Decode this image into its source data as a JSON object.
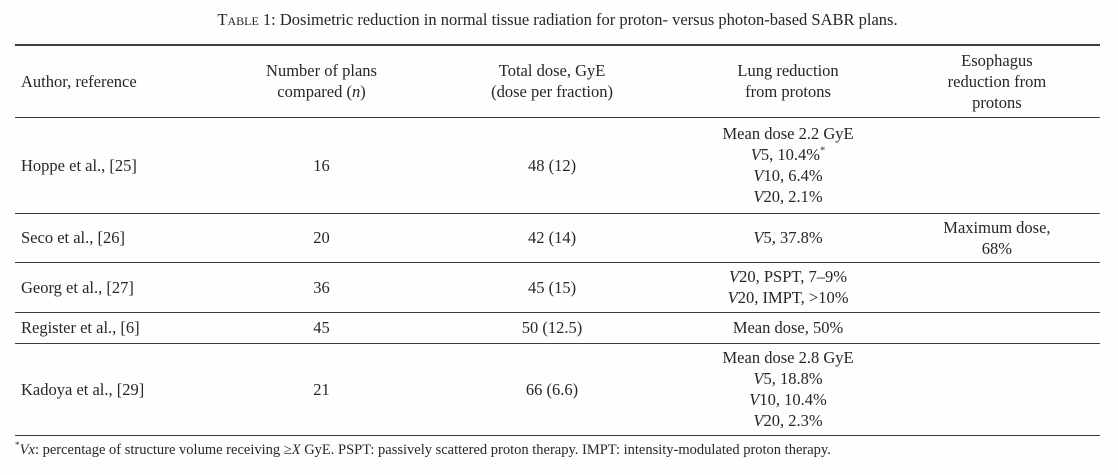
{
  "caption": {
    "label": "Table 1:",
    "text": " Dosimetric reduction in normal tissue radiation for proton- versus photon-based SABR plans."
  },
  "columns": [
    {
      "id": "author",
      "lines": [
        [
          {
            "t": "Author, reference"
          }
        ]
      ]
    },
    {
      "id": "plans",
      "lines": [
        [
          {
            "t": "Number of plans"
          }
        ],
        [
          {
            "t": "compared ("
          },
          {
            "t": "n",
            "i": true
          },
          {
            "t": ")"
          }
        ]
      ]
    },
    {
      "id": "dose",
      "lines": [
        [
          {
            "t": "Total dose, GyE"
          }
        ],
        [
          {
            "t": "(dose per fraction)"
          }
        ]
      ]
    },
    {
      "id": "lung",
      "lines": [
        [
          {
            "t": "Lung reduction"
          }
        ],
        [
          {
            "t": "from protons"
          }
        ]
      ]
    },
    {
      "id": "esophagus",
      "lines": [
        [
          {
            "t": "Esophagus"
          }
        ],
        [
          {
            "t": "reduction from"
          }
        ],
        [
          {
            "t": "protons"
          }
        ]
      ]
    }
  ],
  "rows": [
    {
      "author": [
        [
          {
            "t": "Hoppe et al., [25]"
          }
        ]
      ],
      "plans": [
        [
          {
            "t": "16"
          }
        ]
      ],
      "dose": [
        [
          {
            "t": "48 (12)"
          }
        ]
      ],
      "lung": [
        [
          {
            "t": "Mean dose 2.2 GyE"
          }
        ],
        [
          {
            "t": "V",
            "i": true
          },
          {
            "t": "5, 10.4%"
          },
          {
            "t": "*",
            "sup": true
          }
        ],
        [
          {
            "t": "V",
            "i": true
          },
          {
            "t": "10, 6.4%"
          }
        ],
        [
          {
            "t": "V",
            "i": true
          },
          {
            "t": "20, 2.1%"
          }
        ]
      ],
      "esophagus": []
    },
    {
      "author": [
        [
          {
            "t": "Seco et al., [26]"
          }
        ]
      ],
      "plans": [
        [
          {
            "t": "20"
          }
        ]
      ],
      "dose": [
        [
          {
            "t": "42 (14)"
          }
        ]
      ],
      "lung": [
        [
          {
            "t": "V",
            "i": true
          },
          {
            "t": "5, 37.8%"
          }
        ]
      ],
      "esophagus": [
        [
          {
            "t": "Maximum dose,"
          }
        ],
        [
          {
            "t": "68%"
          }
        ]
      ]
    },
    {
      "author": [
        [
          {
            "t": "Georg et al., [27]"
          }
        ]
      ],
      "plans": [
        [
          {
            "t": "36"
          }
        ]
      ],
      "dose": [
        [
          {
            "t": "45 (15)"
          }
        ]
      ],
      "lung": [
        [
          {
            "t": "V",
            "i": true
          },
          {
            "t": "20, PSPT, 7–9%"
          }
        ],
        [
          {
            "t": "V",
            "i": true
          },
          {
            "t": "20, IMPT, >10%"
          }
        ]
      ],
      "esophagus": []
    },
    {
      "author": [
        [
          {
            "t": "Register et al., [6]"
          }
        ]
      ],
      "plans": [
        [
          {
            "t": "45"
          }
        ]
      ],
      "dose": [
        [
          {
            "t": "50 (12.5)"
          }
        ]
      ],
      "lung": [
        [
          {
            "t": "Mean dose, 50%"
          }
        ]
      ],
      "esophagus": []
    },
    {
      "author": [
        [
          {
            "t": "Kadoya et al., [29]"
          }
        ]
      ],
      "plans": [
        [
          {
            "t": "21"
          }
        ]
      ],
      "dose": [
        [
          {
            "t": "66 (6.6)"
          }
        ]
      ],
      "lung": [
        [
          {
            "t": "Mean dose 2.8 GyE"
          }
        ],
        [
          {
            "t": "V",
            "i": true
          },
          {
            "t": "5, 18.8%"
          }
        ],
        [
          {
            "t": "V",
            "i": true
          },
          {
            "t": "10, 10.4%"
          }
        ],
        [
          {
            "t": "V",
            "i": true
          },
          {
            "t": "20, 2.3%"
          }
        ]
      ],
      "esophagus": []
    }
  ],
  "footnote": [
    {
      "t": "*",
      "sup": true
    },
    {
      "t": "Vx",
      "i": true
    },
    {
      "t": ": percentage of structure volume receiving ≥"
    },
    {
      "t": "X",
      "i": true
    },
    {
      "t": " GyE. PSPT: passively scattered proton therapy. IMPT: intensity-modulated proton therapy."
    }
  ],
  "colors": {
    "text": "#26262b",
    "rule": "#3c3c40",
    "background": "#fefefe"
  }
}
